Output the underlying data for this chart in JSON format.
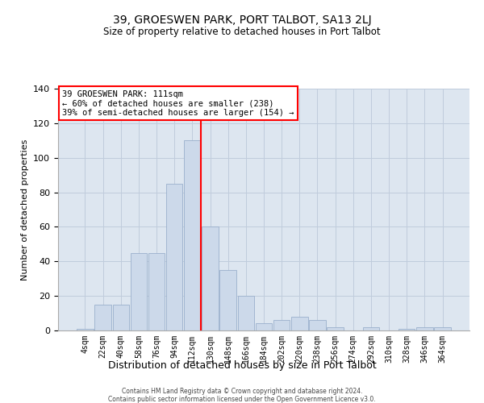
{
  "title": "39, GROESWEN PARK, PORT TALBOT, SA13 2LJ",
  "subtitle": "Size of property relative to detached houses in Port Talbot",
  "xlabel": "Distribution of detached houses by size in Port Talbot",
  "ylabel": "Number of detached properties",
  "bar_labels": [
    "4sqm",
    "22sqm",
    "40sqm",
    "58sqm",
    "76sqm",
    "94sqm",
    "112sqm",
    "130sqm",
    "148sqm",
    "166sqm",
    "184sqm",
    "202sqm",
    "220sqm",
    "238sqm",
    "256sqm",
    "274sqm",
    "292sqm",
    "310sqm",
    "328sqm",
    "346sqm",
    "364sqm"
  ],
  "bar_values": [
    1,
    15,
    15,
    45,
    45,
    85,
    110,
    60,
    35,
    20,
    4,
    6,
    8,
    6,
    2,
    0,
    2,
    0,
    1,
    2,
    2
  ],
  "bar_color": "#ccd9ea",
  "bar_edge_color": "#9ab0cc",
  "grid_color": "#c0ccdc",
  "bg_color": "#dde6f0",
  "red_line_index": 6,
  "annotation_line1": "39 GROESWEN PARK: 111sqm",
  "annotation_line2": "← 60% of detached houses are smaller (238)",
  "annotation_line3": "39% of semi-detached houses are larger (154) →",
  "ylim": [
    0,
    140
  ],
  "yticks": [
    0,
    20,
    40,
    60,
    80,
    100,
    120,
    140
  ],
  "footer1": "Contains HM Land Registry data © Crown copyright and database right 2024.",
  "footer2": "Contains public sector information licensed under the Open Government Licence v3.0."
}
